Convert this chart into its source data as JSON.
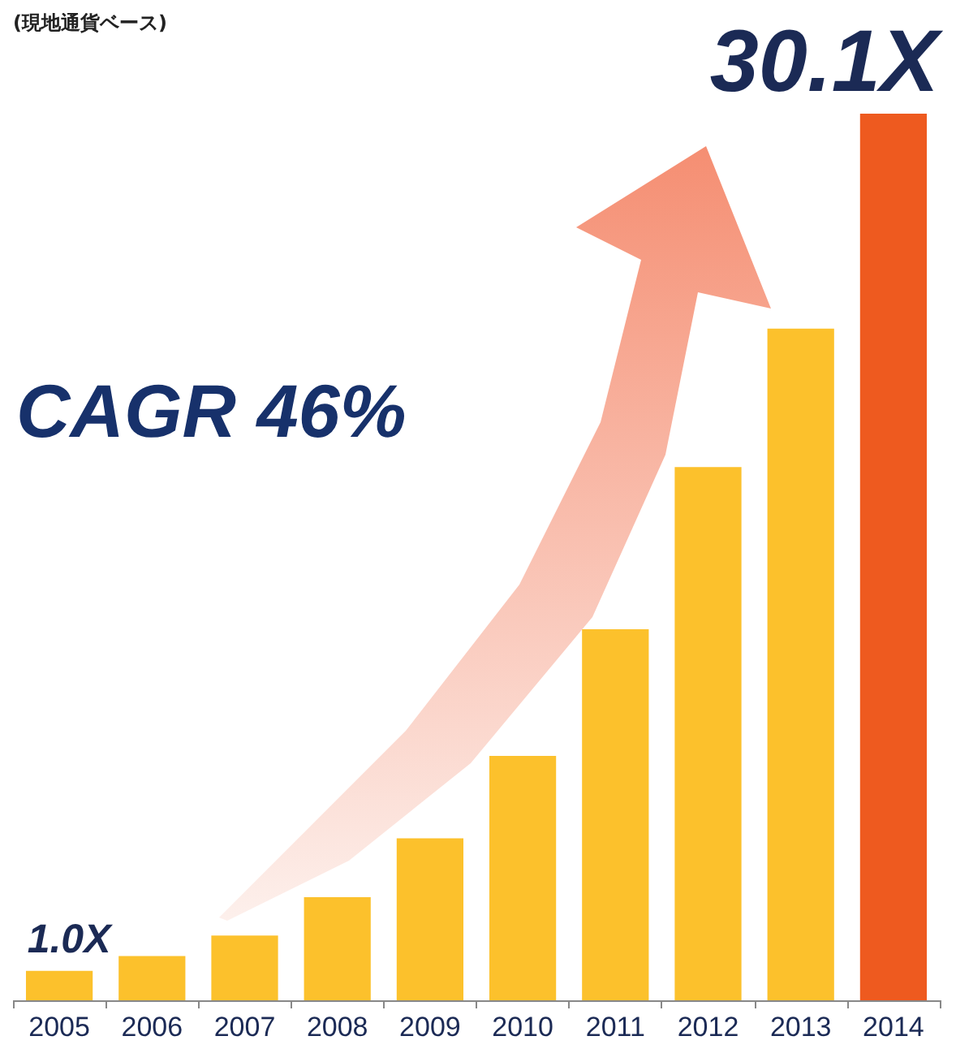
{
  "chart_data": {
    "type": "bar",
    "subtitle": "(現地通貨ベース)",
    "annotations": [
      "CAGR 46%"
    ],
    "categories": [
      "2005",
      "2006",
      "2007",
      "2008",
      "2009",
      "2010",
      "2011",
      "2012",
      "2013",
      "2014"
    ],
    "values": [
      1.0,
      1.5,
      2.2,
      3.5,
      5.5,
      8.3,
      12.6,
      18.1,
      22.8,
      30.1
    ],
    "colors": [
      "#fcc12c",
      "#fcc12c",
      "#fcc12c",
      "#fcc12c",
      "#fcc12c",
      "#fcc12c",
      "#fcc12c",
      "#fcc12c",
      "#fcc12c",
      "#ee5a1f"
    ],
    "value_labels": [
      "1.0X",
      null,
      null,
      null,
      null,
      null,
      null,
      null,
      null,
      "30.1X"
    ],
    "tick_labels": "x",
    "grid": false
  }
}
